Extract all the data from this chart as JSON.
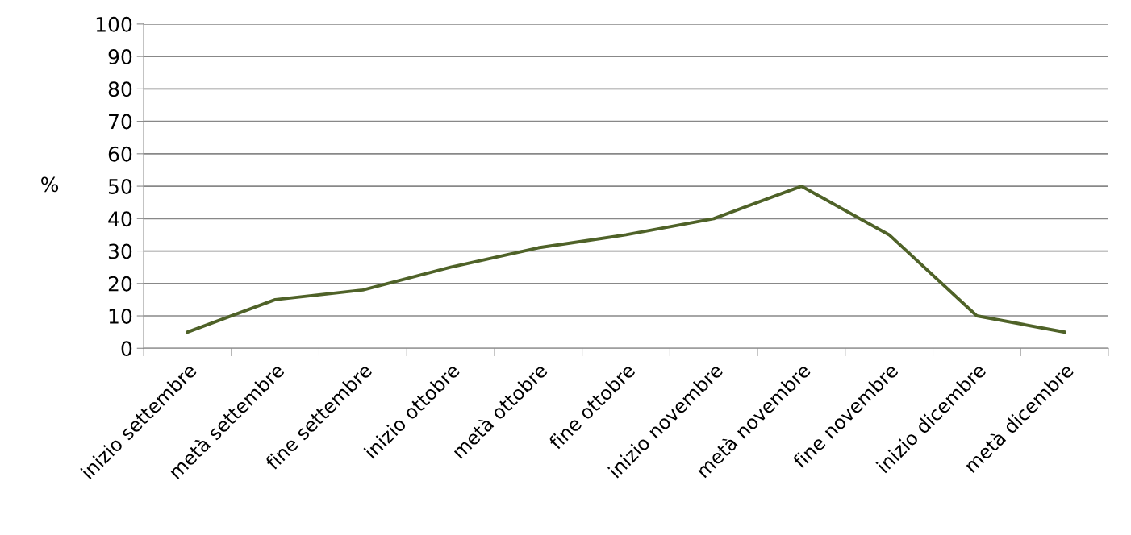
{
  "chart_data": {
    "type": "line",
    "ylabel": "%",
    "categories": [
      "inizio settembre",
      "metà settembre",
      "fine settembre",
      "inizio ottobre",
      "metà ottobre",
      "fine ottobre",
      "inizio novembre",
      "metà novembre",
      "fine novembre",
      "inizio dicembre",
      "metà dicembre"
    ],
    "series": [
      {
        "color": "#4f6228",
        "values": [
          5,
          15,
          18,
          25,
          31,
          35,
          40,
          50,
          35,
          10,
          5
        ]
      }
    ],
    "ylim": [
      0,
      100
    ],
    "yticks": [
      0,
      10,
      20,
      30,
      40,
      50,
      60,
      70,
      80,
      90,
      100
    ],
    "grid": "y",
    "marker": "none",
    "line_style": "solid",
    "legend": false
  }
}
